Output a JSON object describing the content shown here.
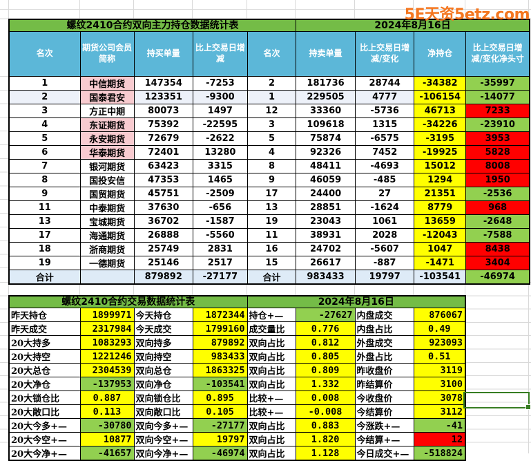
{
  "logo": {
    "text": "5E天资5etz.com",
    "color": "#F4761F"
  },
  "colors": {
    "title_green": "#74BC47",
    "header_blue": "#5CB7D8",
    "cell_yellow": "#FFFF00",
    "cell_green": "#92D050",
    "cell_red": "#FF0000",
    "cell_pink": "#F8CBD0",
    "total_row_blue": "#DEEBF7",
    "text_green": "#00A550",
    "text_red": "#E00000",
    "text_grey": "#6B6B6B",
    "text_olive": "#8C7D00",
    "selection_green": "#377D22"
  },
  "position_table": {
    "title": "螺纹2410合约双向主力持仓数据统计表",
    "date": "2024年8月16日",
    "headers": [
      "名次",
      "期货公司会员简称",
      "持买单量",
      "比上交易日增减",
      "名次",
      "持卖单量",
      "比上交易日增减/变化",
      "净持仓",
      "比上交易日增减/变化净头寸"
    ],
    "rows": [
      {
        "cells": [
          {
            "v": "1",
            "s": "fgGy"
          },
          {
            "v": "中信期货",
            "s": "bgP fgR"
          },
          {
            "v": "147354",
            "s": "fgGy"
          },
          {
            "v": "-7253",
            "s": "fgGy"
          },
          {
            "v": "2",
            "s": "fgGy"
          },
          {
            "v": "181736",
            "s": "fgGy"
          },
          {
            "v": "28744",
            "s": "fgGy"
          },
          {
            "v": "-34382",
            "s": "bgY fgG"
          },
          {
            "v": "-35997",
            "s": "bgG"
          }
        ]
      },
      {
        "cls": "alt",
        "cells": [
          {
            "v": "2",
            "s": "fgGy"
          },
          {
            "v": "国泰君安",
            "s": "bgP fgR"
          },
          {
            "v": "123351",
            "s": "fgGy"
          },
          {
            "v": "-9300",
            "s": "fgGy"
          },
          {
            "v": "1",
            "s": "fgGy"
          },
          {
            "v": "229505",
            "s": "fgGy"
          },
          {
            "v": "4777",
            "s": "fgGy"
          },
          {
            "v": "-106154",
            "s": "bgY fgG"
          },
          {
            "v": "-14077",
            "s": "bgG"
          }
        ]
      },
      {
        "cells": [
          {
            "v": "3",
            "s": "fgGy"
          },
          {
            "v": "方正中期",
            "s": "fgGy"
          },
          {
            "v": "80073",
            "s": "fgGy"
          },
          {
            "v": "1497",
            "s": "fgGy"
          },
          {
            "v": "12",
            "s": "fgGy"
          },
          {
            "v": "33360",
            "s": "fgGy"
          },
          {
            "v": "-5736",
            "s": "fgGy"
          },
          {
            "v": "46713",
            "s": "bgY fgR"
          },
          {
            "v": "7233",
            "s": "bgR"
          }
        ]
      },
      {
        "cells": [
          {
            "v": "4",
            "s": "fgGy"
          },
          {
            "v": "东证期货",
            "s": "bgP fgR"
          },
          {
            "v": "75392",
            "s": "fgGy"
          },
          {
            "v": "-22595",
            "s": "fgGy"
          },
          {
            "v": "3",
            "s": "fgGy"
          },
          {
            "v": "109618",
            "s": "fgGy"
          },
          {
            "v": "1315",
            "s": "fgGy"
          },
          {
            "v": "-34226",
            "s": "bgY fgG"
          },
          {
            "v": "-23910",
            "s": "bgG"
          }
        ]
      },
      {
        "cells": [
          {
            "v": "5",
            "s": "fgGy"
          },
          {
            "v": "永安期货",
            "s": "bgP fgR"
          },
          {
            "v": "72679",
            "s": "fgGy"
          },
          {
            "v": "-2622",
            "s": "fgGy"
          },
          {
            "v": "5",
            "s": "fgGy"
          },
          {
            "v": "75874",
            "s": "fgGy"
          },
          {
            "v": "-6575",
            "s": "fgGy"
          },
          {
            "v": "-3195",
            "s": "bgY fgG"
          },
          {
            "v": "3953",
            "s": "bgR"
          }
        ]
      },
      {
        "cells": [
          {
            "v": "6",
            "s": "fgGy"
          },
          {
            "v": "华泰期货",
            "s": "bgP fgR"
          },
          {
            "v": "72401",
            "s": "fgGy"
          },
          {
            "v": "13280",
            "s": "fgGy"
          },
          {
            "v": "4",
            "s": "fgGy"
          },
          {
            "v": "92326",
            "s": "fgGy"
          },
          {
            "v": "7452",
            "s": "fgGy"
          },
          {
            "v": "-19925",
            "s": "bgY fgG"
          },
          {
            "v": "5828",
            "s": "bgR"
          }
        ]
      },
      {
        "cells": [
          {
            "v": "7",
            "s": "fgGy"
          },
          {
            "v": "银河期货",
            "s": "fgGy"
          },
          {
            "v": "63423",
            "s": "fgGy"
          },
          {
            "v": "3315",
            "s": "fgGy"
          },
          {
            "v": "8",
            "s": "fgGy"
          },
          {
            "v": "48411",
            "s": "fgGy"
          },
          {
            "v": "-4693",
            "s": "fgGy"
          },
          {
            "v": "15012",
            "s": "bgY fgR"
          },
          {
            "v": "8008",
            "s": "bgR"
          }
        ]
      },
      {
        "cells": [
          {
            "v": "8",
            "s": "fgGy"
          },
          {
            "v": "国投安信",
            "s": "fgGy"
          },
          {
            "v": "47353",
            "s": "fgGy"
          },
          {
            "v": "1465",
            "s": "fgGy"
          },
          {
            "v": "9",
            "s": "fgGy"
          },
          {
            "v": "46059",
            "s": "fgGy"
          },
          {
            "v": "-485",
            "s": "fgGy"
          },
          {
            "v": "1294",
            "s": "bgY fgR"
          },
          {
            "v": "1950",
            "s": "bgR"
          }
        ]
      },
      {
        "cells": [
          {
            "v": "9",
            "s": "fgGy"
          },
          {
            "v": "国贸期货",
            "s": "fgGy"
          },
          {
            "v": "45751",
            "s": "fgGy"
          },
          {
            "v": "-2509",
            "s": "fgGy"
          },
          {
            "v": "17",
            "s": "fgGy"
          },
          {
            "v": "24400",
            "s": "fgGy"
          },
          {
            "v": "27",
            "s": "fgGy"
          },
          {
            "v": "21351",
            "s": "bgY fgR"
          },
          {
            "v": "-2536",
            "s": "bgG"
          }
        ]
      },
      {
        "cells": [
          {
            "v": "11",
            "s": "fgGy"
          },
          {
            "v": "中泰期货",
            "s": "fgGy"
          },
          {
            "v": "37630",
            "s": "fgGy"
          },
          {
            "v": "-656",
            "s": "fgGy"
          },
          {
            "v": "13",
            "s": "fgGy"
          },
          {
            "v": "28851",
            "s": "fgGy"
          },
          {
            "v": "-1624",
            "s": "fgGy"
          },
          {
            "v": "8779",
            "s": "bgY fgR"
          },
          {
            "v": "968",
            "s": "bgR"
          }
        ]
      },
      {
        "cells": [
          {
            "v": "13",
            "s": "fgGy"
          },
          {
            "v": "宝城期货",
            "s": "fgGy"
          },
          {
            "v": "36702",
            "s": "fgGy"
          },
          {
            "v": "-1587",
            "s": "fgGy"
          },
          {
            "v": "19",
            "s": "fgGy"
          },
          {
            "v": "23043",
            "s": "fgGy"
          },
          {
            "v": "1061",
            "s": "fgGy"
          },
          {
            "v": "13659",
            "s": "bgY fgR"
          },
          {
            "v": "-2648",
            "s": "bgG"
          }
        ]
      },
      {
        "cells": [
          {
            "v": "17",
            "s": "fgGy"
          },
          {
            "v": "海通期货",
            "s": "fgGy"
          },
          {
            "v": "26888",
            "s": "fgGy"
          },
          {
            "v": "-5560",
            "s": "fgGy"
          },
          {
            "v": "11",
            "s": "fgGy"
          },
          {
            "v": "38931",
            "s": "fgGy"
          },
          {
            "v": "2028",
            "s": "fgGy"
          },
          {
            "v": "-12043",
            "s": "bgY fgG"
          },
          {
            "v": "-7588",
            "s": "bgG"
          }
        ]
      },
      {
        "cells": [
          {
            "v": "18",
            "s": "fgGy"
          },
          {
            "v": "浙商期货",
            "s": "fgGy"
          },
          {
            "v": "25749",
            "s": "fgGy"
          },
          {
            "v": "2831",
            "s": "fgGy"
          },
          {
            "v": "16",
            "s": "fgGy"
          },
          {
            "v": "24702",
            "s": "fgGy"
          },
          {
            "v": "-5607",
            "s": "fgGy"
          },
          {
            "v": "1047",
            "s": "bgY fgR"
          },
          {
            "v": "8438",
            "s": "bgR"
          }
        ]
      },
      {
        "cells": [
          {
            "v": "19",
            "s": "fgGy"
          },
          {
            "v": "一德期货",
            "s": "fgGy"
          },
          {
            "v": "25146",
            "s": "fgGy"
          },
          {
            "v": "2517",
            "s": "fgGy"
          },
          {
            "v": "15",
            "s": "fgGy"
          },
          {
            "v": "26617",
            "s": "fgGy"
          },
          {
            "v": "-887",
            "s": "fgGy"
          },
          {
            "v": "-1471",
            "s": "bgY fgG"
          },
          {
            "v": "3404",
            "s": "bgR"
          }
        ]
      },
      {
        "cls": "total",
        "cells": [
          {
            "v": "合计",
            "s": ""
          },
          {
            "v": "",
            "s": ""
          },
          {
            "v": "879892",
            "s": ""
          },
          {
            "v": "-27177",
            "s": "fgG"
          },
          {
            "v": "合计",
            "s": ""
          },
          {
            "v": "983433",
            "s": ""
          },
          {
            "v": "19797",
            "s": "fgR"
          },
          {
            "v": "-103541",
            "s": "fgG"
          },
          {
            "v": "-46974",
            "s": "bgG"
          }
        ]
      }
    ]
  },
  "trade_table": {
    "title": "螺纹2410合约交易数据统计表",
    "date": "2024年8月16日",
    "rows": [
      {
        "cells": [
          {
            "v": "昨天持仓",
            "s": "lbl"
          },
          {
            "v": "1899971",
            "s": "val bgY alR"
          },
          {
            "v": "今天持仓",
            "s": "lbl"
          },
          {
            "v": "1872344",
            "s": "val bgY alR"
          },
          {
            "v": "持仓+—",
            "s": "lbl"
          },
          {
            "v": "-27627",
            "s": "val bgG alR"
          },
          {
            "v": "内盘成交",
            "s": "lbl"
          },
          {
            "v": "876067",
            "s": "val bgY alR"
          }
        ]
      },
      {
        "cells": [
          {
            "v": "昨天成交",
            "s": "lbl"
          },
          {
            "v": "2317984",
            "s": "val bgY alR"
          },
          {
            "v": "今天成交",
            "s": "lbl"
          },
          {
            "v": "1799160",
            "s": "val bgY alR"
          },
          {
            "v": "成交量比",
            "s": "lbl"
          },
          {
            "v": "0.776",
            "s": "val bgY alC"
          },
          {
            "v": "内盘占比",
            "s": "lbl"
          },
          {
            "v": "0.49",
            "s": "val bgY alC"
          }
        ]
      },
      {
        "cells": [
          {
            "v": "20大持多",
            "s": "lbl"
          },
          {
            "v": "1083293",
            "s": "val bgY fgO alR"
          },
          {
            "v": "双向持多",
            "s": "lbl"
          },
          {
            "v": "879892",
            "s": "val bgY alR"
          },
          {
            "v": "双向占比",
            "s": "lbl"
          },
          {
            "v": "0.812",
            "s": "val bgY alC"
          },
          {
            "v": "外盘成交",
            "s": "lbl"
          },
          {
            "v": "923093",
            "s": "val bgY alR"
          }
        ]
      },
      {
        "cells": [
          {
            "v": "20大持空",
            "s": "lbl"
          },
          {
            "v": "1221246",
            "s": "val bgY fgO alR"
          },
          {
            "v": "双向持空",
            "s": "lbl"
          },
          {
            "v": "983433",
            "s": "val bgY alR"
          },
          {
            "v": "双向占比",
            "s": "lbl"
          },
          {
            "v": "0.805",
            "s": "val bgY alC"
          },
          {
            "v": "外盘占比",
            "s": "lbl"
          },
          {
            "v": "0.51",
            "s": "val bgY alC"
          }
        ]
      },
      {
        "cells": [
          {
            "v": "20大总仓",
            "s": "lbl"
          },
          {
            "v": "2304539",
            "s": "val bgY alR"
          },
          {
            "v": "双向总仓",
            "s": "lbl"
          },
          {
            "v": "1863325",
            "s": "val bgY alR"
          },
          {
            "v": "双向占比",
            "s": "lbl"
          },
          {
            "v": "0.809",
            "s": "val bgY alC"
          },
          {
            "v": "昨收盘价",
            "s": "lbl"
          },
          {
            "v": "3119",
            "s": "val bgY alR"
          }
        ]
      },
      {
        "cells": [
          {
            "v": "20大净仓",
            "s": "lbl"
          },
          {
            "v": "-137953",
            "s": "val bgG alR"
          },
          {
            "v": "双向净仓",
            "s": "lbl"
          },
          {
            "v": "-103541",
            "s": "val bgG alR"
          },
          {
            "v": "双向占比",
            "s": "lbl"
          },
          {
            "v": "1.332",
            "s": "val bgY alC"
          },
          {
            "v": "昨结算价",
            "s": "lbl"
          },
          {
            "v": "3100",
            "s": "val bgY alR"
          }
        ]
      },
      {
        "cells": [
          {
            "v": "20大锁仓比",
            "s": "lbl"
          },
          {
            "v": "0.887",
            "s": "val bgY alC"
          },
          {
            "v": "双向锁仓比",
            "s": "lbl"
          },
          {
            "v": "0.895",
            "s": "val bgY alC"
          },
          {
            "v": "比较+—",
            "s": "lbl"
          },
          {
            "v": "0.008",
            "s": "val bgY alC"
          },
          {
            "v": "今收盘价",
            "s": "lbl"
          },
          {
            "v": "3078",
            "s": "val bgY alR"
          }
        ]
      },
      {
        "cells": [
          {
            "v": "20大敞口比",
            "s": "lbl"
          },
          {
            "v": "0.113",
            "s": "val bgY alC"
          },
          {
            "v": "双向敞口比",
            "s": "lbl"
          },
          {
            "v": "0.105",
            "s": "val bgY alC"
          },
          {
            "v": "比较+—",
            "s": "lbl"
          },
          {
            "v": "-0.008",
            "s": "val bgY alC"
          },
          {
            "v": "今结算价",
            "s": "lbl"
          },
          {
            "v": "3112",
            "s": "val bgY alR"
          }
        ]
      },
      {
        "cells": [
          {
            "v": "20大今多+—",
            "s": "lbl"
          },
          {
            "v": "-30780",
            "s": "val bgG alR"
          },
          {
            "v": "双向今多+—",
            "s": "lbl"
          },
          {
            "v": "-27177",
            "s": "val bgG alR"
          },
          {
            "v": "双向占比",
            "s": "lbl"
          },
          {
            "v": "0.883",
            "s": "val bgY alC"
          },
          {
            "v": "今涨跌+—",
            "s": "lbl"
          },
          {
            "v": "-41",
            "s": "val bgG alR"
          }
        ]
      },
      {
        "cells": [
          {
            "v": "20大今空+—",
            "s": "lbl"
          },
          {
            "v": "10877",
            "s": "val bgY alR"
          },
          {
            "v": "双向今空+—",
            "s": "lbl"
          },
          {
            "v": "19797",
            "s": "val bgY alR"
          },
          {
            "v": "双向占比",
            "s": "lbl"
          },
          {
            "v": "1.820",
            "s": "val bgY alC"
          },
          {
            "v": "今结算+—",
            "s": "lbl"
          },
          {
            "v": "12",
            "s": "val bgR alR"
          }
        ]
      },
      {
        "cells": [
          {
            "v": "20大今净+—",
            "s": "lbl"
          },
          {
            "v": "-41657",
            "s": "val bgG alR"
          },
          {
            "v": "双向今净+—",
            "s": "lbl"
          },
          {
            "v": "-46974",
            "s": "val bgG alR"
          },
          {
            "v": "双向占比",
            "s": "lbl"
          },
          {
            "v": "1.128",
            "s": "val bgY alC"
          },
          {
            "v": "今日成交+—",
            "s": "lbl"
          },
          {
            "v": "-518824",
            "s": "val bgG alR"
          }
        ]
      }
    ]
  }
}
